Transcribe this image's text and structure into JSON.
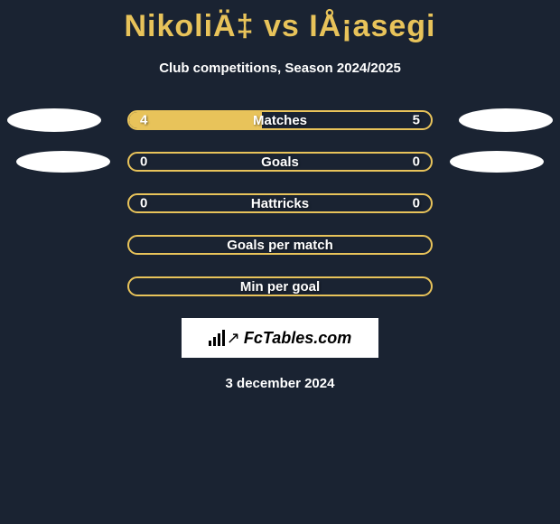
{
  "title": "NikoliÄ‡ vs IÅ¡asegi",
  "subtitle": "Club competitions, Season 2024/2025",
  "date": "3 december 2024",
  "logo_text": "FcTables.com",
  "colors": {
    "background": "#1a2332",
    "accent": "#e8c35a",
    "text": "#ffffff",
    "ellipse": "#ffffff",
    "logo_bg": "#ffffff",
    "logo_text": "#000000"
  },
  "stats": [
    {
      "label": "Matches",
      "left_value": "4",
      "right_value": "5",
      "fill_percent": 44,
      "show_left_ellipse": true,
      "show_right_ellipse": true,
      "ellipse_variant": "first"
    },
    {
      "label": "Goals",
      "left_value": "0",
      "right_value": "0",
      "fill_percent": 0,
      "show_left_ellipse": true,
      "show_right_ellipse": true,
      "ellipse_variant": "second"
    },
    {
      "label": "Hattricks",
      "left_value": "0",
      "right_value": "0",
      "fill_percent": 0,
      "show_left_ellipse": false,
      "show_right_ellipse": false
    },
    {
      "label": "Goals per match",
      "left_value": "",
      "right_value": "",
      "fill_percent": 0,
      "show_left_ellipse": false,
      "show_right_ellipse": false
    },
    {
      "label": "Min per goal",
      "left_value": "",
      "right_value": "",
      "fill_percent": 0,
      "show_left_ellipse": false,
      "show_right_ellipse": false
    }
  ]
}
